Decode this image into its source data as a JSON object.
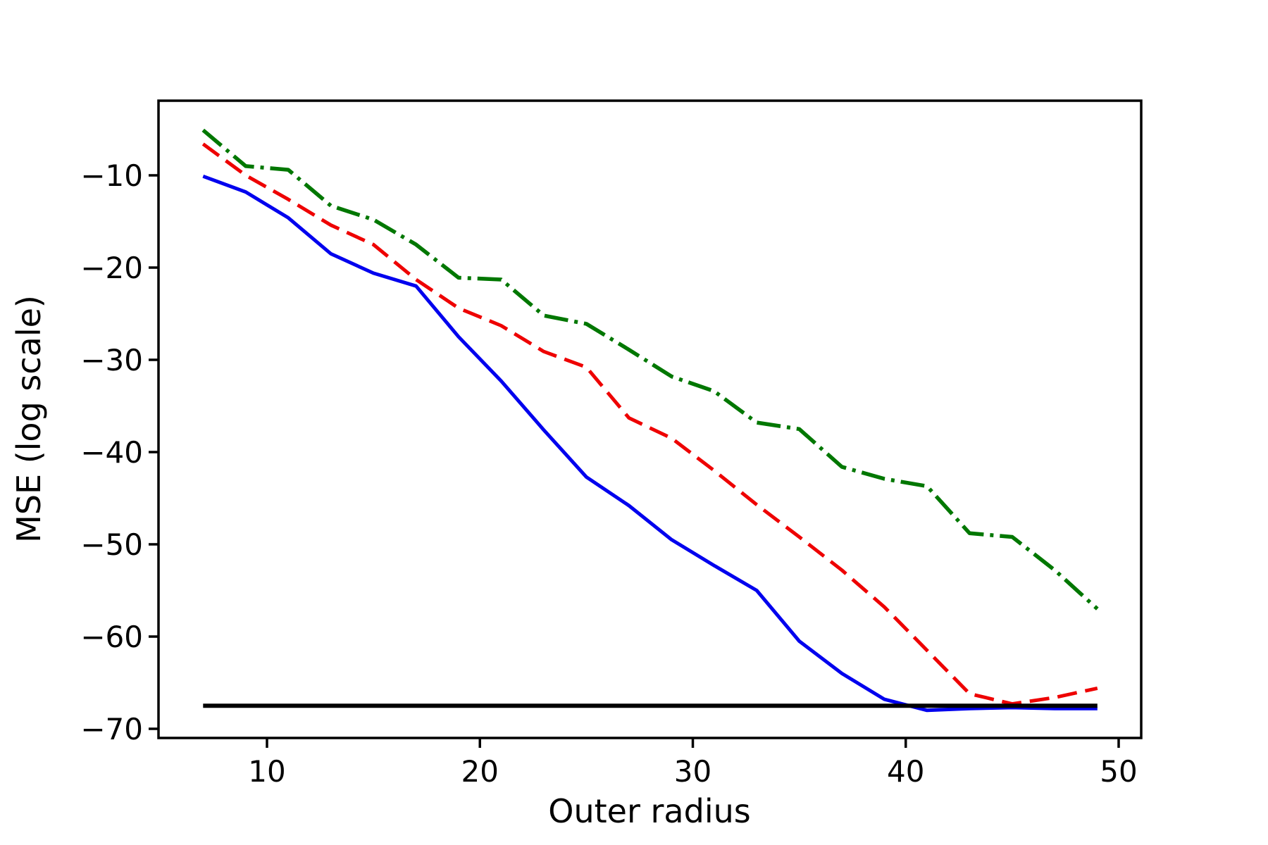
{
  "figure": {
    "background": "#ffffff"
  },
  "chart_data": {
    "type": "line",
    "title": "",
    "xlabel": "Outer radius",
    "ylabel": "MSE (log scale)",
    "xlim": [
      4.9,
      51.1
    ],
    "ylim": [
      -71.1,
      -2.0
    ],
    "xticks": [
      10,
      20,
      30,
      40,
      50
    ],
    "yticks": [
      -70,
      -60,
      -50,
      -40,
      -30,
      -20,
      -10
    ],
    "grid": false,
    "legend": "none",
    "x": [
      7,
      9,
      11,
      13,
      15,
      17,
      19,
      21,
      23,
      25,
      27,
      29,
      31,
      33,
      35,
      37,
      39,
      41,
      43,
      45,
      47,
      49
    ],
    "series": [
      {
        "name": "blue-solid",
        "color": "#0000ee",
        "style": "solid",
        "width": 5,
        "values": [
          -10.1,
          -11.8,
          -14.6,
          -18.5,
          -20.6,
          -22.0,
          -27.5,
          -32.3,
          -37.6,
          -42.7,
          -45.8,
          -49.5,
          -52.3,
          -55.0,
          -60.5,
          -64.0,
          -66.8,
          -68.0,
          -67.8,
          -67.7,
          -67.8,
          -67.8
        ]
      },
      {
        "name": "red-dashed",
        "color": "#ee0000",
        "style": "dashed",
        "width": 5,
        "values": [
          -6.6,
          -10.0,
          -12.6,
          -15.4,
          -17.5,
          -21.3,
          -24.4,
          -26.3,
          -29.1,
          -30.8,
          -36.3,
          -38.5,
          -42.0,
          -45.7,
          -49.2,
          -52.8,
          -56.8,
          -61.5,
          -66.2,
          -67.3,
          -66.6,
          -65.6
        ]
      },
      {
        "name": "green-dashdot",
        "color": "#007700",
        "style": "dashdot",
        "width": 5.5,
        "values": [
          -5.1,
          -9.0,
          -9.4,
          -13.3,
          -14.8,
          -17.5,
          -21.1,
          -21.3,
          -25.2,
          -26.1,
          -28.9,
          -31.8,
          -33.4,
          -36.8,
          -37.5,
          -41.6,
          -42.9,
          -43.7,
          -48.8,
          -49.2,
          -52.8,
          -57.0
        ]
      },
      {
        "name": "black-baseline",
        "color": "#000000",
        "style": "solid",
        "width": 6,
        "values": [
          -67.5,
          -67.5,
          -67.5,
          -67.5,
          -67.5,
          -67.5,
          -67.5,
          -67.5,
          -67.5,
          -67.5,
          -67.5,
          -67.5,
          -67.5,
          -67.5,
          -67.5,
          -67.5,
          -67.5,
          -67.5,
          -67.5,
          -67.5,
          -67.5,
          -67.5
        ]
      }
    ]
  }
}
